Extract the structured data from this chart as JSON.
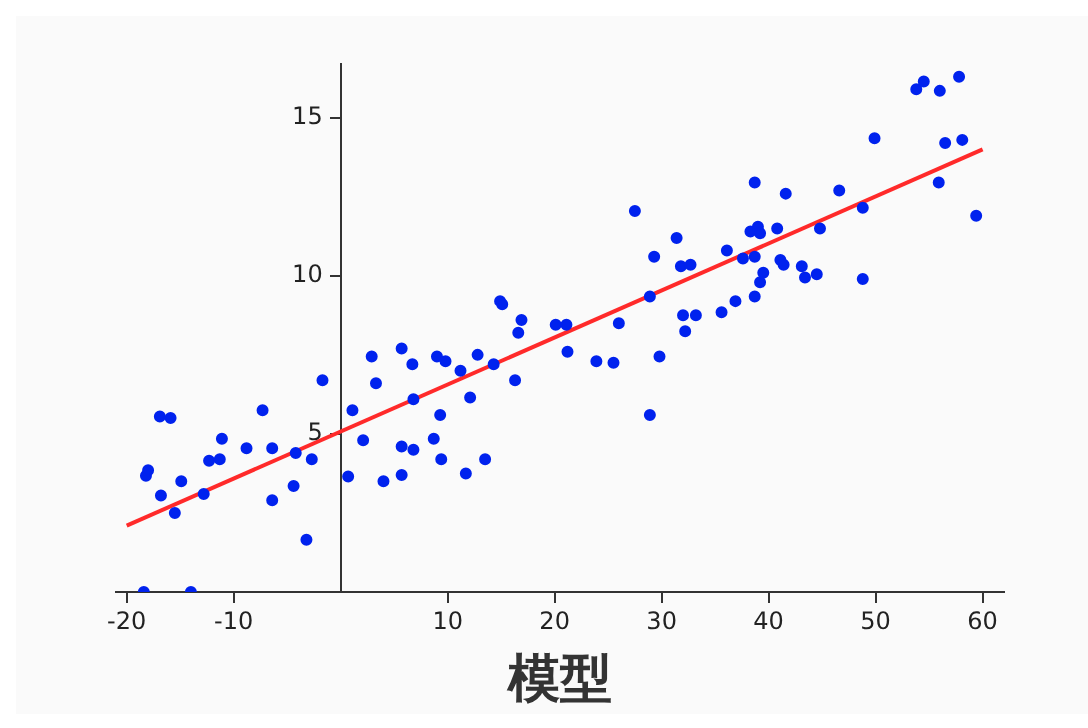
{
  "chart_data": {
    "type": "scatter",
    "title": "模型",
    "xlim": [
      -21,
      62
    ],
    "ylim": [
      0,
      16.7
    ],
    "xticks": [
      -20,
      -10,
      10,
      20,
      30,
      40,
      50,
      60
    ],
    "yticks": [
      5,
      10,
      15
    ],
    "grid": false,
    "legend": false,
    "marker": "circle",
    "series": [
      {
        "color": "#0022ee",
        "x": [
          -18.2,
          -18.0,
          -18.4,
          -16.9,
          -15.9,
          -16.8,
          -15.5,
          -14.9,
          -14.0,
          -12.8,
          -12.3,
          -11.3,
          -11.1,
          -8.8,
          -7.3,
          -6.4,
          -6.4,
          -4.4,
          -4.2,
          -3.2,
          -2.7,
          -1.7,
          0.7,
          1.1,
          2.1,
          2.9,
          3.3,
          4.0,
          5.7,
          5.7,
          5.7,
          6.7,
          6.8,
          6.8,
          8.7,
          9.0,
          9.3,
          9.4,
          9.8,
          11.2,
          11.7,
          12.1,
          12.8,
          13.5,
          14.3,
          14.9,
          15.1,
          16.3,
          16.6,
          16.9,
          20.1,
          21.1,
          21.2,
          23.9,
          25.5,
          26.0,
          27.5,
          28.9,
          28.9,
          29.3,
          29.8,
          31.4,
          31.8,
          32.7,
          32.0,
          32.2,
          33.2,
          35.6,
          36.1,
          36.9,
          37.6,
          38.3,
          38.7,
          38.7,
          38.7,
          39.0,
          39.2,
          39.2,
          39.5,
          40.8,
          41.1,
          41.4,
          41.6,
          43.1,
          43.4,
          44.5,
          44.8,
          46.6,
          48.8,
          48.8,
          49.9,
          53.8,
          54.5,
          56.0,
          55.9,
          56.5,
          57.8,
          58.1,
          59.4
        ],
        "values": [
          3.68,
          3.85,
          0,
          5.55,
          5.5,
          3.05,
          2.5,
          3.5,
          0,
          3.1,
          4.15,
          4.2,
          4.85,
          4.55,
          5.75,
          4.55,
          2.9,
          3.35,
          4.4,
          1.65,
          4.2,
          6.7,
          3.65,
          5.75,
          4.8,
          7.45,
          6.6,
          3.5,
          7.7,
          4.6,
          3.7,
          7.2,
          6.1,
          4.5,
          4.85,
          7.45,
          5.6,
          4.2,
          7.3,
          7.0,
          3.75,
          6.15,
          7.5,
          4.2,
          7.2,
          9.2,
          9.1,
          6.7,
          8.2,
          8.6,
          8.45,
          8.45,
          7.6,
          7.3,
          7.25,
          8.5,
          12.05,
          5.6,
          9.35,
          10.6,
          7.45,
          11.2,
          10.3,
          10.35,
          8.75,
          8.25,
          8.75,
          8.85,
          10.8,
          9.2,
          10.55,
          11.4,
          10.6,
          12.95,
          9.35,
          11.55,
          11.35,
          9.8,
          10.1,
          11.5,
          10.5,
          10.35,
          12.6,
          10.3,
          9.95,
          10.05,
          11.5,
          12.7,
          12.15,
          9.9,
          14.35,
          15.9,
          16.15,
          15.85,
          12.95,
          14.2,
          16.3,
          14.3,
          11.9
        ]
      },
      {
        "type": "line",
        "marker": "none",
        "color": "#ff2a2a",
        "x": [
          -20,
          60
        ],
        "values": [
          2.1,
          14.0
        ]
      }
    ]
  }
}
